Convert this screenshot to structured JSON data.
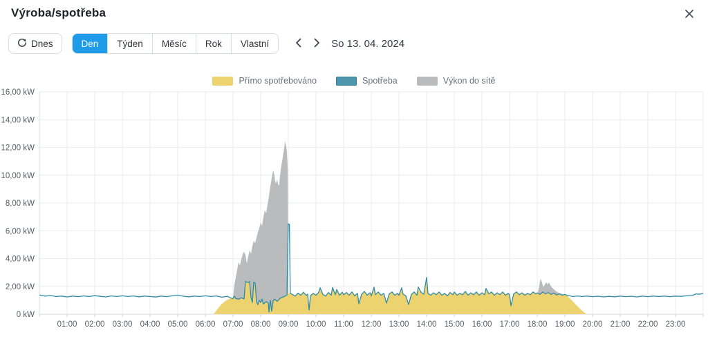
{
  "dialog": {
    "title": "Výroba/spotřeba"
  },
  "toolbar": {
    "today_label": "Dnes",
    "tabs": [
      {
        "label": "Den",
        "active": true
      },
      {
        "label": "Týden",
        "active": false
      },
      {
        "label": "Měsíc",
        "active": false
      },
      {
        "label": "Rok",
        "active": false
      },
      {
        "label": "Vlastní",
        "active": false
      }
    ],
    "date_label": "So 13. 04. 2024"
  },
  "legend": [
    {
      "label": "Přímo spotřebováno",
      "color": "#ecd36f"
    },
    {
      "label": "Spotřeba",
      "color": "#4e96ab",
      "border": "#2f7d97"
    },
    {
      "label": "Výkon do sítě",
      "color": "#b9bbbd"
    }
  ],
  "chart_data": {
    "type": "area",
    "title": "Výroba/spotřeba",
    "unit": "kW",
    "ylim": [
      0,
      16
    ],
    "xlim_hours": [
      0,
      24
    ],
    "grid": true,
    "legend_position": "top",
    "y_tick_values": [
      0,
      2,
      4,
      6,
      8,
      10,
      12,
      14,
      16
    ],
    "y_tick_labels": [
      "0 kW",
      "2,00 kW",
      "4,00 kW",
      "6,00 kW",
      "8,00 kW",
      "10,00 kW",
      "12,00 kW",
      "14,00 kW",
      "16,00 kW"
    ],
    "x_tick_hours": [
      1,
      2,
      3,
      4,
      5,
      6,
      7,
      8,
      9,
      10,
      11,
      12,
      13,
      14,
      15,
      16,
      17,
      18,
      19,
      20,
      21,
      22,
      23
    ],
    "x_tick_labels": [
      "01:00",
      "02:00",
      "03:00",
      "04:00",
      "05:00",
      "06:00",
      "07:00",
      "08:00",
      "09:00",
      "10:00",
      "11:00",
      "12:00",
      "13:00",
      "14:00",
      "15:00",
      "16:00",
      "17:00",
      "18:00",
      "19:00",
      "20:00",
      "21:00",
      "22:00",
      "23:00"
    ],
    "series": [
      {
        "name": "Spotřeba",
        "type": "line",
        "color": "#2f8ba6",
        "pairs": [
          [
            0,
            1.38
          ],
          [
            0.2,
            1.3
          ],
          [
            0.4,
            1.34
          ],
          [
            0.6,
            1.27
          ],
          [
            0.8,
            1.3
          ],
          [
            1,
            1.24
          ],
          [
            1.2,
            1.3
          ],
          [
            1.4,
            1.26
          ],
          [
            1.6,
            1.31
          ],
          [
            1.8,
            1.27
          ],
          [
            2,
            1.33
          ],
          [
            2.2,
            1.28
          ],
          [
            2.4,
            1.24
          ],
          [
            2.6,
            1.31
          ],
          [
            2.8,
            1.27
          ],
          [
            3,
            1.32
          ],
          [
            3.2,
            1.27
          ],
          [
            3.4,
            1.31
          ],
          [
            3.6,
            1.25
          ],
          [
            3.8,
            1.3
          ],
          [
            4,
            1.27
          ],
          [
            4.2,
            1.23
          ],
          [
            4.4,
            1.3
          ],
          [
            4.6,
            1.26
          ],
          [
            4.8,
            1.32
          ],
          [
            5,
            1.37
          ],
          [
            5.2,
            1.29
          ],
          [
            5.4,
            1.25
          ],
          [
            5.6,
            1.3
          ],
          [
            5.8,
            1.27
          ],
          [
            6,
            1.32
          ],
          [
            6.2,
            1.27
          ],
          [
            6.4,
            1.31
          ],
          [
            6.6,
            1.22
          ],
          [
            6.8,
            1.28
          ],
          [
            6.9,
            1.18
          ],
          [
            7,
            1.12
          ],
          [
            7.05,
            1.3
          ],
          [
            7.1,
            1.12
          ],
          [
            7.2,
            1.08
          ],
          [
            7.3,
            1.18
          ],
          [
            7.4,
            1.1
          ],
          [
            7.45,
            2.35
          ],
          [
            7.55,
            2.28
          ],
          [
            7.6,
            2.35
          ],
          [
            7.65,
            1.2
          ],
          [
            7.7,
            0.85
          ],
          [
            7.75,
            2.3
          ],
          [
            7.8,
            2.24
          ],
          [
            7.85,
            0.9
          ],
          [
            7.9,
            0.68
          ],
          [
            7.95,
            1
          ],
          [
            8,
            0.84
          ],
          [
            8.05,
            1.08
          ],
          [
            8.1,
            0.74
          ],
          [
            8.2,
            0.9
          ],
          [
            8.28,
            0.8
          ],
          [
            8.3,
            0.15
          ],
          [
            8.35,
            1
          ],
          [
            8.4,
            0.2
          ],
          [
            8.45,
            0.95
          ],
          [
            8.5,
            1.08
          ],
          [
            8.6,
            0.92
          ],
          [
            8.7,
            1.14
          ],
          [
            8.8,
            1.22
          ],
          [
            8.9,
            1.32
          ],
          [
            8.95,
            1.38
          ],
          [
            9,
            6.5
          ],
          [
            9.04,
            6.45
          ],
          [
            9.07,
            1.5
          ],
          [
            9.15,
            1.42
          ],
          [
            9.25,
            1.3
          ],
          [
            9.35,
            1.52
          ],
          [
            9.45,
            1.36
          ],
          [
            9.55,
            1.58
          ],
          [
            9.65,
            1.35
          ],
          [
            9.7,
            1.44
          ],
          [
            9.75,
            0.3
          ],
          [
            9.8,
            1.32
          ],
          [
            9.9,
            1.5
          ],
          [
            10,
            1.36
          ],
          [
            10.1,
            1.58
          ],
          [
            10.15,
            1.9
          ],
          [
            10.25,
            1.42
          ],
          [
            10.35,
            1.3
          ],
          [
            10.45,
            1.56
          ],
          [
            10.55,
            1.36
          ],
          [
            10.6,
            1.92
          ],
          [
            10.7,
            1.4
          ],
          [
            10.75,
            1.78
          ],
          [
            10.85,
            1.36
          ],
          [
            10.95,
            1.58
          ],
          [
            11,
            1.4
          ],
          [
            11.1,
            1.56
          ],
          [
            11.2,
            1.36
          ],
          [
            11.3,
            1.6
          ],
          [
            11.4,
            1.32
          ],
          [
            11.5,
            1.5
          ],
          [
            11.55,
            0.75
          ],
          [
            11.65,
            1.42
          ],
          [
            11.75,
            1.64
          ],
          [
            11.85,
            1.36
          ],
          [
            11.95,
            1.55
          ],
          [
            12,
            1.32
          ],
          [
            12.1,
            1.94
          ],
          [
            12.15,
            1.4
          ],
          [
            12.25,
            1.6
          ],
          [
            12.35,
            1.36
          ],
          [
            12.45,
            1.5
          ],
          [
            12.55,
            0.8
          ],
          [
            12.65,
            1.46
          ],
          [
            12.75,
            1.6
          ],
          [
            12.85,
            1.36
          ],
          [
            12.95,
            1.5
          ],
          [
            13,
            1.36
          ],
          [
            13.1,
            1.9
          ],
          [
            13.15,
            1.44
          ],
          [
            13.25,
            1.32
          ],
          [
            13.35,
            0.7
          ],
          [
            13.45,
            1.42
          ],
          [
            13.55,
            1.6
          ],
          [
            13.65,
            1.36
          ],
          [
            13.7,
            1.95
          ],
          [
            13.8,
            1.58
          ],
          [
            13.9,
            1.44
          ],
          [
            14,
            2.65
          ],
          [
            14.05,
            1.5
          ],
          [
            14.15,
            1.36
          ],
          [
            14.25,
            1.54
          ],
          [
            14.35,
            1.4
          ],
          [
            14.45,
            1.6
          ],
          [
            14.55,
            1.36
          ],
          [
            14.65,
            1.5
          ],
          [
            14.75,
            1.32
          ],
          [
            14.85,
            1.56
          ],
          [
            14.95,
            1.4
          ],
          [
            15,
            1.6
          ],
          [
            15.1,
            1.36
          ],
          [
            15.2,
            1.5
          ],
          [
            15.3,
            1.4
          ],
          [
            15.4,
            1.64
          ],
          [
            15.5,
            1.36
          ],
          [
            15.6,
            1.54
          ],
          [
            15.7,
            1.4
          ],
          [
            15.8,
            1.6
          ],
          [
            15.9,
            1.36
          ],
          [
            16,
            1.54
          ],
          [
            16.1,
            1.4
          ],
          [
            16.15,
            1.85
          ],
          [
            16.25,
            1.46
          ],
          [
            16.35,
            1.6
          ],
          [
            16.45,
            1.36
          ],
          [
            16.55,
            1.54
          ],
          [
            16.65,
            1.4
          ],
          [
            16.75,
            1.6
          ],
          [
            16.85,
            1.36
          ],
          [
            16.95,
            1.5
          ],
          [
            17,
            1.4
          ],
          [
            17.05,
            0.6
          ],
          [
            17.15,
            1.46
          ],
          [
            17.25,
            1.6
          ],
          [
            17.35,
            1.4
          ],
          [
            17.45,
            1.54
          ],
          [
            17.55,
            1.36
          ],
          [
            17.65,
            1.5
          ],
          [
            17.75,
            1.4
          ],
          [
            17.85,
            1.6
          ],
          [
            17.95,
            1.46
          ],
          [
            18,
            1.54
          ],
          [
            18.1,
            1.42
          ],
          [
            18.2,
            1.6
          ],
          [
            18.3,
            1.46
          ],
          [
            18.4,
            1.56
          ],
          [
            18.5,
            1.42
          ],
          [
            18.6,
            1.52
          ],
          [
            18.7,
            1.38
          ],
          [
            18.8,
            1.46
          ],
          [
            18.9,
            1.36
          ],
          [
            19,
            1.42
          ],
          [
            19.1,
            1.34
          ],
          [
            19.2,
            1.3
          ],
          [
            19.3,
            1.27
          ],
          [
            19.45,
            1.31
          ],
          [
            19.6,
            1.27
          ],
          [
            19.8,
            1.3
          ],
          [
            20,
            1.26
          ],
          [
            20.2,
            1.29
          ],
          [
            20.4,
            1.24
          ],
          [
            20.6,
            1.28
          ],
          [
            20.8,
            1.25
          ],
          [
            21,
            1.3
          ],
          [
            21.2,
            1.26
          ],
          [
            21.4,
            1.29
          ],
          [
            21.6,
            1.24
          ],
          [
            21.8,
            1.3
          ],
          [
            22,
            1.26
          ],
          [
            22.2,
            1.3
          ],
          [
            22.4,
            1.27
          ],
          [
            22.6,
            1.3
          ],
          [
            22.8,
            1.26
          ],
          [
            23,
            1.3
          ],
          [
            23.2,
            1.28
          ],
          [
            23.4,
            1.32
          ],
          [
            23.6,
            1.34
          ],
          [
            23.75,
            1.46
          ],
          [
            23.85,
            1.43
          ],
          [
            24,
            1.5
          ]
        ]
      },
      {
        "name": "Přímo spotřebováno",
        "type": "area",
        "color": "#ecd36f",
        "rule": "min(consumption, envelope)",
        "envelope_pairs": [
          [
            0,
            0
          ],
          [
            6.3,
            0
          ],
          [
            6.45,
            0.4
          ],
          [
            6.6,
            0.75
          ],
          [
            6.75,
            0.98
          ],
          [
            6.9,
            1.12
          ],
          [
            7.1,
            1.45
          ],
          [
            7.3,
            2.2
          ],
          [
            7.38,
            9
          ],
          [
            8.95,
            9
          ],
          [
            8.97,
            1.5
          ],
          [
            9.05,
            1.5
          ],
          [
            9.08,
            9
          ],
          [
            18.95,
            9
          ],
          [
            19,
            1.42
          ],
          [
            19.1,
            1.28
          ],
          [
            19.25,
            1
          ],
          [
            19.4,
            0.68
          ],
          [
            19.55,
            0.38
          ],
          [
            19.7,
            0.12
          ],
          [
            19.78,
            0
          ],
          [
            24,
            0
          ]
        ]
      },
      {
        "name": "Výkon do sítě",
        "type": "band-above-direct",
        "color": "#b9bbbd",
        "top_pairs": [
          [
            7,
            1.2
          ],
          [
            7.05,
            2.1
          ],
          [
            7.1,
            2.65
          ],
          [
            7.15,
            3.2
          ],
          [
            7.2,
            3.75
          ],
          [
            7.25,
            3.5
          ],
          [
            7.3,
            3.95
          ],
          [
            7.35,
            4.3
          ],
          [
            7.4,
            4.5
          ],
          [
            7.45,
            4.25
          ],
          [
            7.5,
            3.65
          ],
          [
            7.55,
            4.15
          ],
          [
            7.6,
            4.6
          ],
          [
            7.65,
            4.35
          ],
          [
            7.7,
            4.9
          ],
          [
            7.75,
            5.3
          ],
          [
            7.8,
            5.1
          ],
          [
            7.85,
            5.5
          ],
          [
            7.9,
            5.9
          ],
          [
            7.95,
            6.2
          ],
          [
            8,
            6.6
          ],
          [
            8.05,
            6.35
          ],
          [
            8.1,
            7
          ],
          [
            8.15,
            7.5
          ],
          [
            8.2,
            7.25
          ],
          [
            8.25,
            7.9
          ],
          [
            8.3,
            8.5
          ],
          [
            8.35,
            9.2
          ],
          [
            8.4,
            9.8
          ],
          [
            8.45,
            10.35
          ],
          [
            8.5,
            10
          ],
          [
            8.52,
            9.6
          ],
          [
            8.55,
            9.4
          ],
          [
            8.6,
            9.7
          ],
          [
            8.63,
            9.35
          ],
          [
            8.67,
            9.25
          ],
          [
            8.7,
            10
          ],
          [
            8.75,
            10.7
          ],
          [
            8.8,
            11.3
          ],
          [
            8.85,
            11.95
          ],
          [
            8.88,
            12.45
          ],
          [
            8.92,
            12.1
          ],
          [
            8.95,
            11.7
          ],
          [
            8.98,
            10.4
          ],
          [
            9,
            1.4
          ],
          [
            9.02,
            1.3
          ],
          [
            18.02,
            1.5
          ],
          [
            18.07,
            2
          ],
          [
            18.12,
            2.55
          ],
          [
            18.17,
            2.3
          ],
          [
            18.22,
            1.95
          ],
          [
            18.27,
            2.1
          ],
          [
            18.32,
            2.3
          ],
          [
            18.37,
            2.15
          ],
          [
            18.42,
            2.28
          ],
          [
            18.47,
            2.1
          ],
          [
            18.52,
            1.95
          ],
          [
            18.57,
            1.85
          ],
          [
            18.62,
            1.75
          ],
          [
            18.7,
            1.62
          ],
          [
            18.8,
            1.52
          ],
          [
            18.9,
            1.45
          ],
          [
            18.95,
            1.42
          ]
        ]
      }
    ]
  }
}
